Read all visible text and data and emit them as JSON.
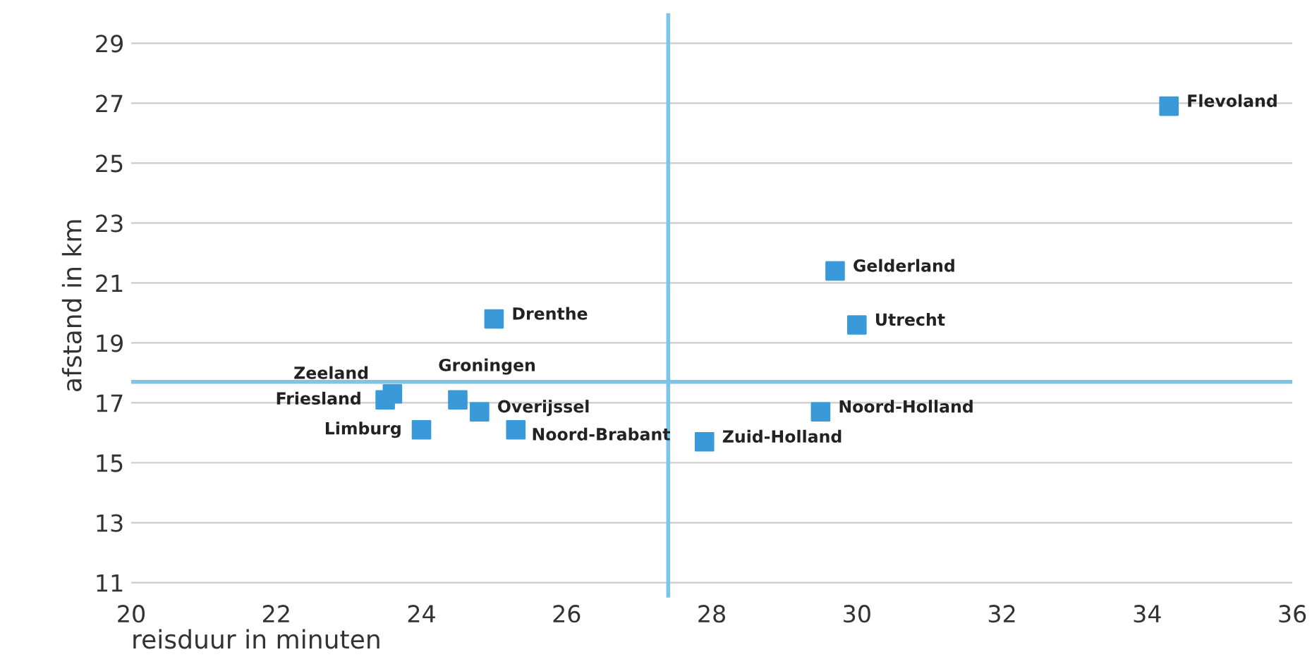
{
  "chart_data": {
    "type": "scatter",
    "xlabel": "reisduur in minuten",
    "ylabel": "afstand in km",
    "x": [
      34.3,
      29.7,
      30.0,
      25.0,
      29.5,
      27.9,
      23.6,
      23.5,
      24.0,
      24.5,
      24.8,
      25.3
    ],
    "series": [
      {
        "color": "#3a9ad9",
        "values": [
          26.9,
          21.4,
          19.6,
          19.8,
          16.7,
          15.7,
          17.3,
          17.1,
          16.1,
          17.1,
          16.7,
          16.1
        ]
      }
    ],
    "marker": "square",
    "xlim": [
      20,
      36
    ],
    "ylim": [
      10.5,
      30
    ],
    "xticks": [
      20,
      22,
      24,
      26,
      28,
      30,
      32,
      34,
      36
    ],
    "yticks": [
      11,
      13,
      15,
      17,
      19,
      21,
      23,
      25,
      27,
      29
    ],
    "grid": "y",
    "ref_lines": [
      {
        "axis": "x",
        "value": 27.4,
        "color": "#7cc4ea"
      },
      {
        "axis": "y",
        "value": 17.7,
        "color": "#7cc4ea"
      }
    ],
    "annotations": [
      {
        "text": "Flevoland",
        "x": 34.3,
        "y": 26.9
      },
      {
        "text": "Gelderland",
        "x": 29.7,
        "y": 21.4
      },
      {
        "text": "Utrecht",
        "x": 30.0,
        "y": 19.6
      },
      {
        "text": "Drenthe",
        "x": 25.0,
        "y": 19.8
      },
      {
        "text": "Noord-Holland",
        "x": 29.5,
        "y": 16.7
      },
      {
        "text": "Zuid-Holland",
        "x": 27.9,
        "y": 15.7
      },
      {
        "text": "Zeeland",
        "x": 23.6,
        "y": 17.3
      },
      {
        "text": "Friesland",
        "x": 23.5,
        "y": 17.1
      },
      {
        "text": "Limburg",
        "x": 24.0,
        "y": 16.1
      },
      {
        "text": "Groningen",
        "x": 24.5,
        "y": 17.1
      },
      {
        "text": "Overijssel",
        "x": 24.8,
        "y": 16.7
      },
      {
        "text": "Noord-Brabant",
        "x": 25.3,
        "y": 16.1
      }
    ]
  }
}
